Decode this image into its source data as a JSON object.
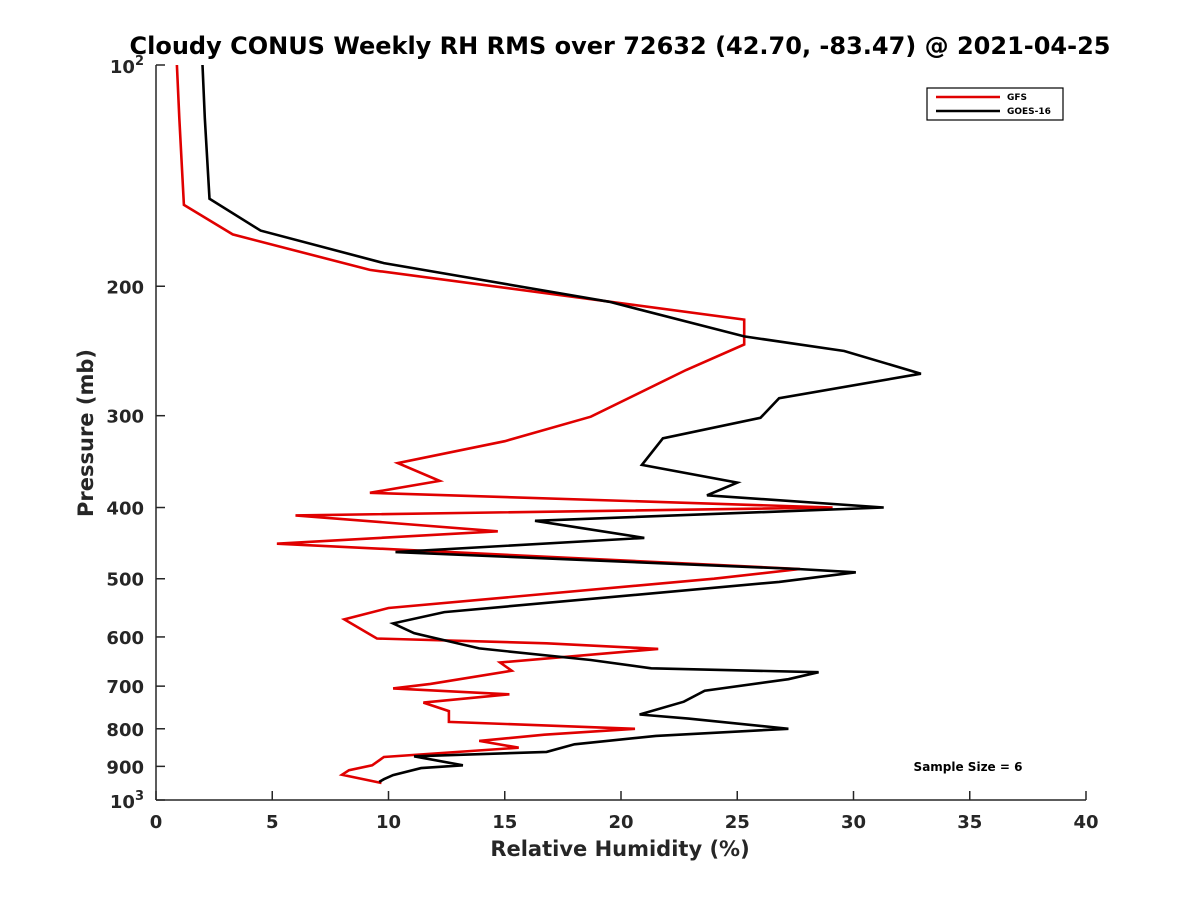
{
  "chart_data": {
    "type": "line",
    "title": "Cloudy CONUS Weekly RH RMS over 72632 (42.70, -83.47) @ 2021-04-25",
    "xlabel": "Relative Humidity (%)",
    "ylabel": "Pressure (mb)",
    "xlim": [
      0,
      40
    ],
    "ylim": [
      100,
      1000
    ],
    "yscale": "log",
    "y_reversed": true,
    "grid": false,
    "legend_position": "top-right",
    "x_ticks": [
      0,
      5,
      10,
      15,
      20,
      25,
      30,
      35,
      40
    ],
    "x_tick_labels": [
      "0",
      "5",
      "10",
      "15",
      "20",
      "25",
      "30",
      "35",
      "40"
    ],
    "y_ticks": [
      200,
      300,
      400,
      500,
      600,
      700,
      800,
      900
    ],
    "y_tick_labels": [
      "200",
      "300",
      "400",
      "500",
      "600",
      "700",
      "800",
      "900"
    ],
    "y_end_labels": [
      {
        "value": 100,
        "base": "10",
        "exp": "2"
      },
      {
        "value": 1000,
        "base": "10",
        "exp": "3"
      }
    ],
    "annotation": "Sample Size = 6",
    "series": [
      {
        "name": "GFS",
        "color": "#e00000",
        "x": [
          0.9,
          1.0,
          1.2,
          3.3,
          9.2,
          25.3,
          25.3,
          22.8,
          18.7,
          15.0,
          10.4,
          12.2,
          9.2,
          29.1,
          6.0,
          14.7,
          5.2,
          27.7,
          24.0,
          10.0,
          8.1,
          9.5,
          16.8,
          21.6,
          14.8,
          15.3,
          11.8,
          10.2,
          15.2,
          11.5,
          12.6,
          12.6,
          20.6,
          16.7,
          13.9,
          15.6,
          9.8,
          9.3,
          8.3,
          8.0,
          9.7
        ],
        "y": [
          100,
          118,
          155,
          170,
          190,
          222,
          240,
          260,
          301,
          325,
          348,
          368,
          382,
          400,
          410,
          431,
          448,
          485,
          500,
          548,
          568,
          603,
          612,
          623,
          650,
          667,
          695,
          705,
          718,
          737,
          757,
          783,
          800,
          815,
          831,
          849,
          874,
          897,
          911,
          924,
          948
        ]
      },
      {
        "name": "GOES-16",
        "color": "#000000",
        "x": [
          2.0,
          2.1,
          2.3,
          4.5,
          9.8,
          19.5,
          25.3,
          29.6,
          32.9,
          26.8,
          26.0,
          21.8,
          20.9,
          25.0,
          23.7,
          31.3,
          16.3,
          21.0,
          10.3,
          27.6,
          30.1,
          26.8,
          12.4,
          10.2,
          11.1,
          13.9,
          18.7,
          21.3,
          28.5,
          27.2,
          23.6,
          22.7,
          20.8,
          22.9,
          27.2,
          21.5,
          18.0,
          16.8,
          11.1,
          13.2,
          11.4,
          10.2,
          9.8,
          9.6
        ],
        "y": [
          100,
          118,
          152,
          168,
          186,
          210,
          234,
          245,
          263,
          284,
          302,
          322,
          350,
          370,
          385,
          400,
          417,
          440,
          460,
          485,
          490,
          505,
          555,
          575,
          593,
          622,
          645,
          662,
          670,
          685,
          710,
          735,
          765,
          775,
          800,
          818,
          840,
          860,
          872,
          897,
          905,
          925,
          937,
          945
        ]
      }
    ]
  }
}
